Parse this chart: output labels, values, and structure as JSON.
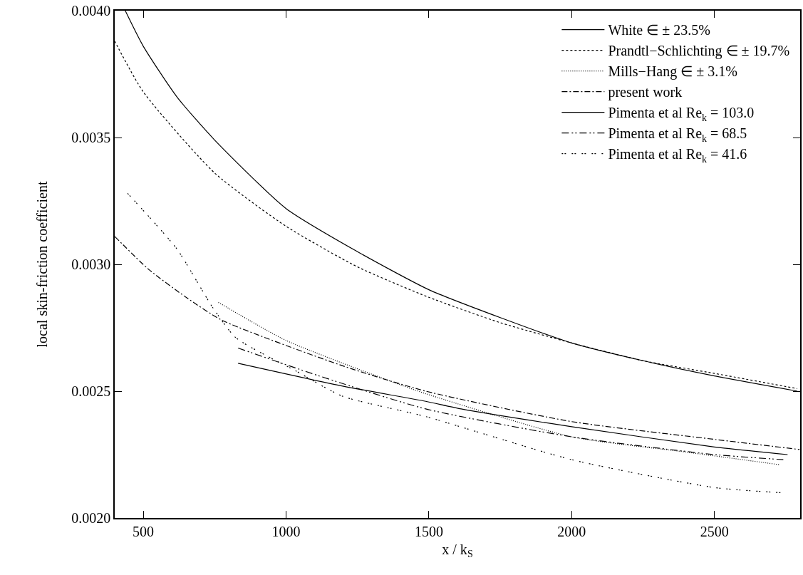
{
  "chart_data": {
    "type": "line",
    "xlabel": "x / k$_{S}$",
    "ylabel": "local skin-friction coefficient",
    "xlim": [
      400,
      2800
    ],
    "xticks": [
      500,
      1000,
      1500,
      2000,
      2500
    ],
    "ylim": [
      0.002,
      0.004
    ],
    "yticks": [
      {
        "value": 0.002,
        "label": "0.0020"
      },
      {
        "value": 0.0025,
        "label": "0.0025"
      },
      {
        "value": 0.003,
        "label": "0.0030"
      },
      {
        "value": 0.0035,
        "label": "0.0035"
      },
      {
        "value": 0.004,
        "label": "0.0040"
      }
    ],
    "grid": false,
    "legend": "top right",
    "marker": "none",
    "series": [
      {
        "name": "White ∈ ± 23.5%",
        "color": "#000000",
        "line_style": "solid",
        "x": [
          437,
          500,
          618,
          750,
          1000,
          1250,
          1500,
          1750,
          2000,
          2250,
          2500,
          2790
        ],
        "values": [
          0.004,
          0.00386,
          0.00366,
          0.00349,
          0.00322,
          0.00305,
          0.0029,
          0.00279,
          0.00269,
          0.00262,
          0.00256,
          0.0025
        ]
      },
      {
        "name": "Prandtl−Schlichting ∈ ± 19.7%",
        "color": "#000000",
        "line_style": "dashed",
        "x": [
          400,
          500,
          750,
          1000,
          1250,
          1500,
          1750,
          2000,
          2250,
          2500,
          2790
        ],
        "values": [
          0.00388,
          0.00368,
          0.00336,
          0.00315,
          0.00299,
          0.00287,
          0.00277,
          0.00269,
          0.00262,
          0.00257,
          0.00251
        ]
      },
      {
        "name": "Mills−Hang ∈ ± 3.1%",
        "color": "#000000",
        "line_style": "dotted",
        "x": [
          763,
          1000,
          1364,
          1489,
          2000,
          2400,
          2729
        ],
        "values": [
          0.00285,
          0.0027,
          0.00254,
          0.00249,
          0.00232,
          0.00226,
          0.00221
        ]
      },
      {
        "name": "present work",
        "color": "#000000",
        "line_style": "dashdot",
        "x": [
          400,
          519,
          650,
          775,
          1198,
          1489,
          2000,
          2500,
          2798
        ],
        "values": [
          0.00311,
          0.00298,
          0.00287,
          0.00278,
          0.0026,
          0.0025,
          0.00238,
          0.00231,
          0.00227
        ]
      },
      {
        "name": "Pimenta et al Re$_{k}$ = 103.0",
        "color": "#000000",
        "line_style": "solid",
        "x": [
          832,
          1198,
          1489,
          1613,
          2000,
          2500,
          2756
        ],
        "values": [
          0.00261,
          0.00252,
          0.00246,
          0.00243,
          0.00236,
          0.00228,
          0.00225
        ]
      },
      {
        "name": "Pimenta et al Re$_{k}$ = 68.5",
        "color": "#000000",
        "line_style": "longdashdotdot",
        "x": [
          832,
          1116,
          1489,
          2000,
          2500,
          2741
        ],
        "values": [
          0.00267,
          0.00256,
          0.00243,
          0.00232,
          0.00225,
          0.00223
        ]
      },
      {
        "name": "Pimenta et al Re$_{k}$ = 41.6",
        "color": "#000000",
        "line_style": "sparsedot",
        "x": [
          445,
          618,
          743,
          825,
          1034,
          1198,
          1489,
          2000,
          2500,
          2731
        ],
        "values": [
          0.00328,
          0.00306,
          0.00283,
          0.00271,
          0.00258,
          0.00248,
          0.0024,
          0.00223,
          0.00212,
          0.0021
        ]
      }
    ]
  }
}
